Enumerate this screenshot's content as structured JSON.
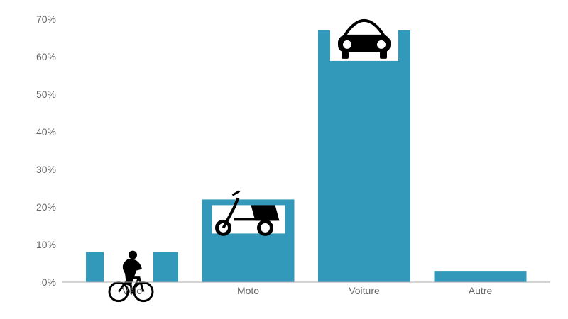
{
  "chart_data": {
    "type": "bar",
    "categories": [
      "Vélo",
      "Moto",
      "Voiture",
      "Autre"
    ],
    "values": [
      8,
      22,
      67,
      3
    ],
    "ylim": [
      0,
      70
    ],
    "yticks": [
      0,
      10,
      20,
      30,
      40,
      50,
      60,
      70
    ],
    "ytick_labels": [
      "0%",
      "10%",
      "20%",
      "30%",
      "40%",
      "50%",
      "60%",
      "70%"
    ],
    "grid": false,
    "icons": [
      "bicycle-icon",
      "scooter-icon",
      "car-icon",
      ""
    ],
    "colors": {
      "bar": "#3399bb",
      "axis": "#aaaaaa",
      "text": "#666666"
    }
  }
}
